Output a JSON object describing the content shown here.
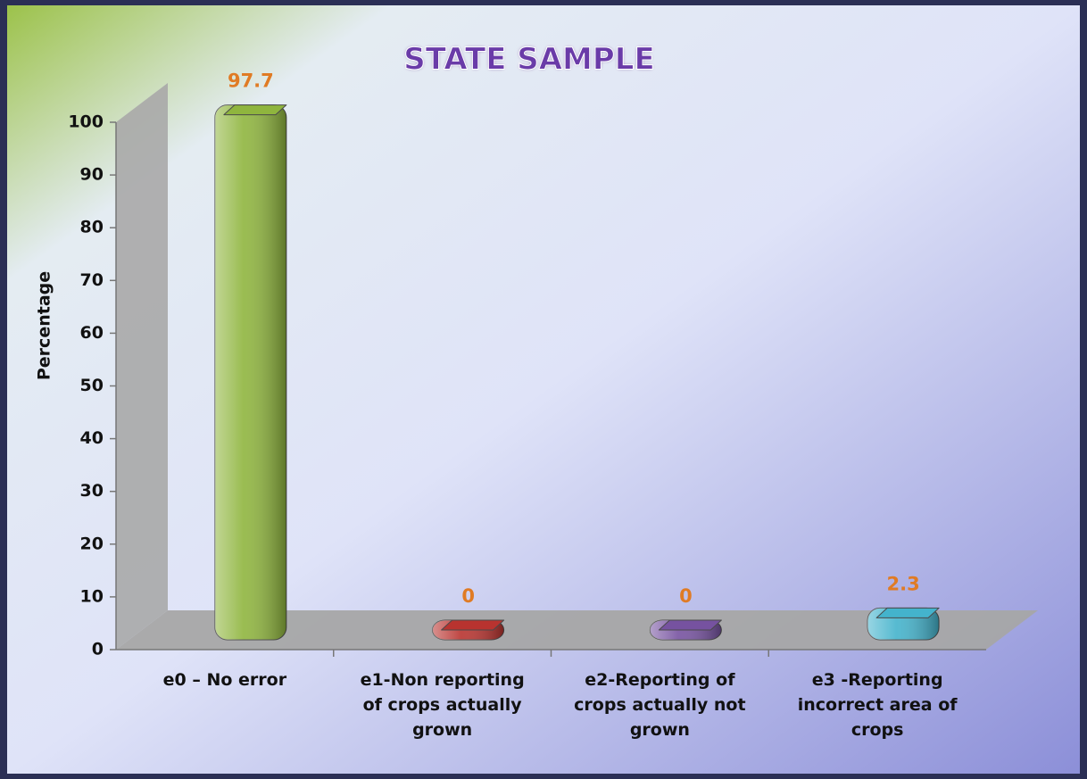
{
  "chart_data": {
    "type": "bar3d",
    "title": "STATE SAMPLE",
    "y_label": "Percentage",
    "categories": [
      "e0 – No error",
      "e1-Non reporting of crops actually grown",
      "e2-Reporting of crops actually not grown",
      "e3 -Reporting incorrect area of crops"
    ],
    "values": [
      97.7,
      0,
      0,
      2.3
    ],
    "colors": [
      "#8fb53e",
      "#b8332f",
      "#7652a0",
      "#44b3cc"
    ],
    "ylim": [
      0,
      100
    ],
    "yticks": [
      0,
      10,
      20,
      30,
      40,
      50,
      60,
      70,
      80,
      90,
      100
    ]
  }
}
